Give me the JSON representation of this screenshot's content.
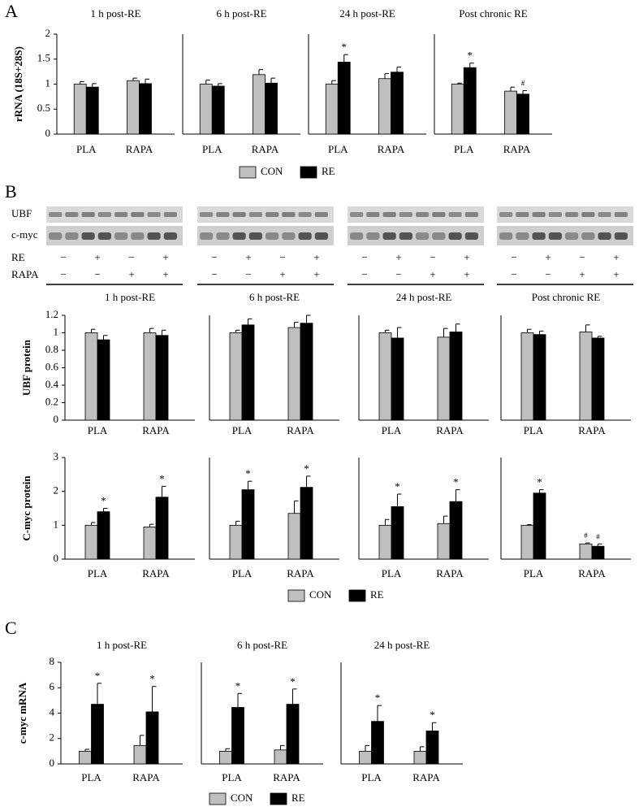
{
  "panels": [
    "A",
    "B",
    "C"
  ],
  "blot": {
    "rows": [
      "UBF",
      "c-myc"
    ],
    "conditions": [
      {
        "name": "RE",
        "signs": [
          "−",
          "+",
          "−",
          "+"
        ]
      },
      {
        "name": "RAPA",
        "signs": [
          "−",
          "−",
          "+",
          "+"
        ]
      }
    ]
  },
  "chart_data": [
    {
      "type": "bar",
      "title": "1 h post-RE",
      "ylabel": "rRNA (18S+28S)",
      "categories": [
        "PLA",
        "RAPA"
      ],
      "ylim": [
        0,
        2
      ],
      "yticks": [
        0,
        0.5,
        1,
        1.5,
        2
      ],
      "series": [
        {
          "name": "CON",
          "color": "#bfbfbf",
          "values": [
            1.0,
            1.07
          ],
          "errors": [
            0.05,
            0.05
          ]
        },
        {
          "name": "RE",
          "color": "#000000",
          "values": [
            0.94,
            1.01
          ],
          "errors": [
            0.07,
            0.09
          ]
        }
      ]
    },
    {
      "type": "bar",
      "title": "6 h post-RE",
      "categories": [
        "PLA",
        "RAPA"
      ],
      "ylim": [
        0,
        2
      ],
      "series": [
        {
          "name": "CON",
          "color": "#bfbfbf",
          "values": [
            1.0,
            1.19
          ],
          "errors": [
            0.08,
            0.1
          ]
        },
        {
          "name": "RE",
          "color": "#000000",
          "values": [
            0.96,
            1.02
          ],
          "errors": [
            0.05,
            0.1
          ]
        }
      ]
    },
    {
      "type": "bar",
      "title": "24 h post-RE",
      "categories": [
        "PLA",
        "RAPA"
      ],
      "ylim": [
        0,
        2
      ],
      "series": [
        {
          "name": "CON",
          "color": "#bfbfbf",
          "values": [
            1.0,
            1.11
          ],
          "errors": [
            0.07,
            0.1
          ]
        },
        {
          "name": "RE",
          "color": "#000000",
          "values": [
            1.44,
            1.24
          ],
          "errors": [
            0.15,
            0.1
          ],
          "annotations": [
            "*",
            null
          ]
        }
      ]
    },
    {
      "type": "bar",
      "title": "Post chronic RE",
      "categories": [
        "PLA",
        "RAPA"
      ],
      "ylim": [
        0,
        2
      ],
      "series": [
        {
          "name": "CON",
          "color": "#bfbfbf",
          "values": [
            1.0,
            0.86
          ],
          "errors": [
            0.02,
            0.08
          ]
        },
        {
          "name": "RE",
          "color": "#000000",
          "values": [
            1.33,
            0.8
          ],
          "errors": [
            0.09,
            0.07
          ],
          "annotations": [
            "*",
            "#"
          ]
        }
      ]
    },
    {
      "type": "bar",
      "title": "1 h post-RE",
      "ylabel": "UBF protein",
      "categories": [
        "PLA",
        "RAPA"
      ],
      "ylim": [
        0,
        1.2
      ],
      "yticks": [
        0,
        0.2,
        0.4,
        0.6,
        0.8,
        1,
        1.2
      ],
      "series": [
        {
          "name": "CON",
          "color": "#bfbfbf",
          "values": [
            1.0,
            1.0
          ],
          "errors": [
            0.04,
            0.05
          ]
        },
        {
          "name": "RE",
          "color": "#000000",
          "values": [
            0.92,
            0.97
          ],
          "errors": [
            0.05,
            0.06
          ]
        }
      ]
    },
    {
      "type": "bar",
      "title": "6 h post-RE",
      "categories": [
        "PLA",
        "RAPA"
      ],
      "ylim": [
        0,
        1.2
      ],
      "series": [
        {
          "name": "CON",
          "color": "#bfbfbf",
          "values": [
            1.0,
            1.06
          ],
          "errors": [
            0.03,
            0.06
          ]
        },
        {
          "name": "RE",
          "color": "#000000",
          "values": [
            1.09,
            1.11
          ],
          "errors": [
            0.07,
            0.09
          ]
        }
      ]
    },
    {
      "type": "bar",
      "title": "24 h post-RE",
      "categories": [
        "PLA",
        "RAPA"
      ],
      "ylim": [
        0,
        1.2
      ],
      "series": [
        {
          "name": "CON",
          "color": "#bfbfbf",
          "values": [
            1.0,
            0.95
          ],
          "errors": [
            0.03,
            0.1
          ]
        },
        {
          "name": "RE",
          "color": "#000000",
          "values": [
            0.94,
            1.01
          ],
          "errors": [
            0.12,
            0.09
          ]
        }
      ]
    },
    {
      "type": "bar",
      "title": "Post chronic RE",
      "categories": [
        "PLA",
        "RAPA"
      ],
      "ylim": [
        0,
        1.2
      ],
      "series": [
        {
          "name": "CON",
          "color": "#bfbfbf",
          "values": [
            1.0,
            1.01
          ],
          "errors": [
            0.04,
            0.08
          ]
        },
        {
          "name": "RE",
          "color": "#000000",
          "values": [
            0.98,
            0.94
          ],
          "errors": [
            0.04,
            0.02
          ]
        }
      ]
    },
    {
      "type": "bar",
      "ylabel": "C-myc protein",
      "categories": [
        "PLA",
        "RAPA"
      ],
      "ylim": [
        0,
        3
      ],
      "yticks": [
        0,
        1,
        2,
        3
      ],
      "series": [
        {
          "name": "CON",
          "color": "#bfbfbf",
          "values": [
            1.0,
            0.95
          ],
          "errors": [
            0.08,
            0.08
          ]
        },
        {
          "name": "RE",
          "color": "#000000",
          "values": [
            1.4,
            1.83
          ],
          "errors": [
            0.1,
            0.32
          ],
          "annotations": [
            "*",
            "*"
          ]
        }
      ]
    },
    {
      "type": "bar",
      "categories": [
        "PLA",
        "RAPA"
      ],
      "ylim": [
        0,
        3
      ],
      "series": [
        {
          "name": "CON",
          "color": "#bfbfbf",
          "values": [
            1.0,
            1.35
          ],
          "errors": [
            0.12,
            0.37
          ]
        },
        {
          "name": "RE",
          "color": "#000000",
          "values": [
            2.05,
            2.12
          ],
          "errors": [
            0.25,
            0.33
          ],
          "annotations": [
            "*",
            "*"
          ]
        }
      ]
    },
    {
      "type": "bar",
      "categories": [
        "PLA",
        "RAPA"
      ],
      "ylim": [
        0,
        3
      ],
      "series": [
        {
          "name": "CON",
          "color": "#bfbfbf",
          "values": [
            1.0,
            1.05
          ],
          "errors": [
            0.17,
            0.22
          ]
        },
        {
          "name": "RE",
          "color": "#000000",
          "values": [
            1.55,
            1.7
          ],
          "errors": [
            0.37,
            0.35
          ],
          "annotations": [
            "*",
            "*"
          ]
        }
      ]
    },
    {
      "type": "bar",
      "categories": [
        "PLA",
        "RAPA"
      ],
      "ylim": [
        0,
        3
      ],
      "series": [
        {
          "name": "CON",
          "color": "#bfbfbf",
          "values": [
            1.0,
            0.45
          ],
          "errors": [
            0.02,
            0.03
          ],
          "annotations": [
            null,
            "#"
          ]
        },
        {
          "name": "RE",
          "color": "#000000",
          "values": [
            1.95,
            0.38
          ],
          "errors": [
            0.1,
            0.07
          ],
          "annotations": [
            "*",
            "#"
          ]
        }
      ]
    },
    {
      "type": "bar",
      "title": "1 h post-RE",
      "ylabel": "c-myc mRNA",
      "categories": [
        "PLA",
        "RAPA"
      ],
      "ylim": [
        0,
        8
      ],
      "yticks": [
        0,
        2,
        4,
        6,
        8
      ],
      "series": [
        {
          "name": "CON",
          "color": "#bfbfbf",
          "values": [
            1.0,
            1.45
          ],
          "errors": [
            0.15,
            0.8
          ]
        },
        {
          "name": "RE",
          "color": "#000000",
          "values": [
            4.7,
            4.1
          ],
          "errors": [
            1.65,
            2.0
          ],
          "annotations": [
            "*",
            "*"
          ]
        }
      ]
    },
    {
      "type": "bar",
      "title": "6 h post-RE",
      "categories": [
        "PLA",
        "RAPA"
      ],
      "ylim": [
        0,
        8
      ],
      "series": [
        {
          "name": "CON",
          "color": "#bfbfbf",
          "values": [
            1.0,
            1.1
          ],
          "errors": [
            0.2,
            0.35
          ]
        },
        {
          "name": "RE",
          "color": "#000000",
          "values": [
            4.45,
            4.7
          ],
          "errors": [
            1.1,
            1.2
          ],
          "annotations": [
            "*",
            "*"
          ]
        }
      ]
    },
    {
      "type": "bar",
      "title": "24 h post-RE",
      "categories": [
        "PLA",
        "RAPA"
      ],
      "ylim": [
        0,
        8
      ],
      "series": [
        {
          "name": "CON",
          "color": "#bfbfbf",
          "values": [
            1.0,
            1.0
          ],
          "errors": [
            0.45,
            0.35
          ]
        },
        {
          "name": "RE",
          "color": "#000000",
          "values": [
            3.35,
            2.6
          ],
          "errors": [
            1.25,
            0.65
          ],
          "annotations": [
            "*",
            "*"
          ]
        }
      ]
    }
  ]
}
